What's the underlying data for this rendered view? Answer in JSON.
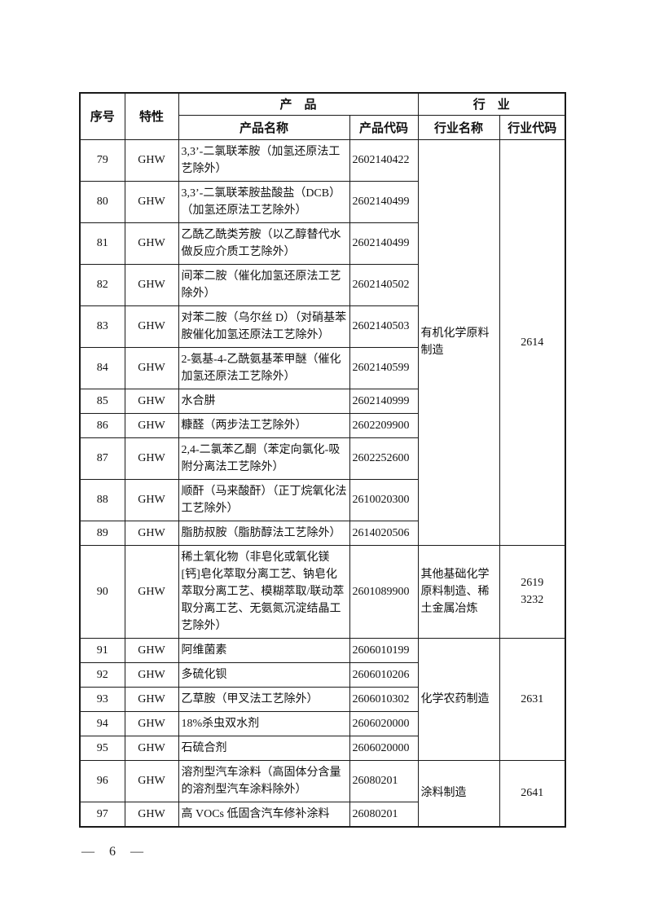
{
  "page_number": "— 6 —",
  "table": {
    "headers": {
      "no": "序号",
      "property": "特性",
      "product_group": "产　品",
      "product_name": "产品名称",
      "product_code": "产品代码",
      "industry_group": "行　业",
      "industry_name": "行业名称",
      "industry_code": "行业代码"
    },
    "rows": [
      {
        "no": "79",
        "property": "GHW",
        "name": "3,3’-二氯联苯胺（加氢还原法工艺除外）",
        "code": "2602140422"
      },
      {
        "no": "80",
        "property": "GHW",
        "name": "3,3’-二氯联苯胺盐酸盐（DCB）（加氢还原法工艺除外）",
        "code": "2602140499"
      },
      {
        "no": "81",
        "property": "GHW",
        "name": "乙酰乙酰类芳胺（以乙醇替代水做反应介质工艺除外）",
        "code": "2602140499"
      },
      {
        "no": "82",
        "property": "GHW",
        "name": "间苯二胺（催化加氢还原法工艺除外）",
        "code": "2602140502"
      },
      {
        "no": "83",
        "property": "GHW",
        "name": "对苯二胺（乌尔丝 D）（对硝基苯胺催化加氢还原法工艺除外）",
        "code": "2602140503"
      },
      {
        "no": "84",
        "property": "GHW",
        "name": "2-氨基-4-乙酰氨基苯甲醚（催化加氢还原法工艺除外）",
        "code": "2602140599"
      },
      {
        "no": "85",
        "property": "GHW",
        "name": "水合肼",
        "code": "2602140999"
      },
      {
        "no": "86",
        "property": "GHW",
        "name": "糠醛（两步法工艺除外）",
        "code": "2602209900"
      },
      {
        "no": "87",
        "property": "GHW",
        "name": "2,4-二氯苯乙酮（苯定向氯化-吸附分离法工艺除外）",
        "code": "2602252600"
      },
      {
        "no": "88",
        "property": "GHW",
        "name": "顺酐（马来酸酐）（正丁烷氧化法工艺除外）",
        "code": "2610020300"
      },
      {
        "no": "89",
        "property": "GHW",
        "name": "脂肪叔胺（脂肪醇法工艺除外）",
        "code": "2614020506"
      },
      {
        "no": "90",
        "property": "GHW",
        "name": "稀土氧化物（非皂化或氧化镁[钙]皂化萃取分离工艺、钠皂化萃取分离工艺、模糊萃取/联动萃取分离工艺、无氨氮沉淀结晶工艺除外）",
        "code": "2601089900"
      },
      {
        "no": "91",
        "property": "GHW",
        "name": "阿维菌素",
        "code": "2606010199"
      },
      {
        "no": "92",
        "property": "GHW",
        "name": "多硫化钡",
        "code": "2606010206"
      },
      {
        "no": "93",
        "property": "GHW",
        "name": "乙草胺（甲叉法工艺除外）",
        "code": "2606010302"
      },
      {
        "no": "94",
        "property": "GHW",
        "name": "18%杀虫双水剂",
        "code": "2606020000"
      },
      {
        "no": "95",
        "property": "GHW",
        "name": "石硫合剂",
        "code": "2606020000"
      },
      {
        "no": "96",
        "property": "GHW",
        "name": "溶剂型汽车涂料（高固体分含量的溶剂型汽车涂料除外）",
        "code": "26080201"
      },
      {
        "no": "97",
        "property": "GHW",
        "name": "高 VOCs 低固含汽车修补涂料",
        "code": "26080201"
      }
    ],
    "industry_groups": [
      {
        "name": "有机化学原料制造",
        "code": "2614",
        "rowspan": 11
      },
      {
        "name": "其他基础化学原料制造、稀土金属冶炼",
        "code": "2619\n3232",
        "rowspan": 1
      },
      {
        "name": "化学农药制造",
        "code": "2631",
        "rowspan": 5
      },
      {
        "name": "涂料制造",
        "code": "2641",
        "rowspan": 2
      }
    ]
  }
}
